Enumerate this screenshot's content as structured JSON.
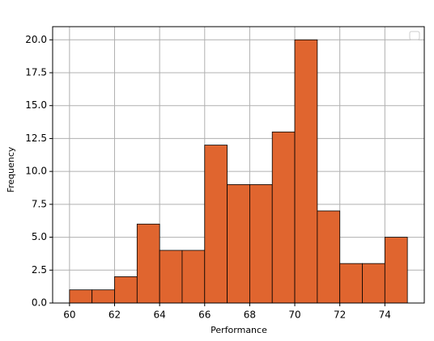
{
  "chart_data": {
    "type": "histogram",
    "x_label": "Performance",
    "y_label": "Frequency",
    "bins": [
      60,
      61,
      62,
      63,
      64,
      65,
      66,
      67,
      68,
      69,
      70,
      71,
      72,
      73,
      74,
      75
    ],
    "values": [
      1,
      1,
      2,
      6,
      4,
      4,
      12,
      9,
      9,
      13,
      20,
      7,
      3,
      3,
      5
    ],
    "color": "#e0652f",
    "edge_color": "#000000",
    "xlim": [
      59.25,
      75.75
    ],
    "ylim": [
      0,
      21
    ],
    "xticks": [
      60,
      62,
      64,
      66,
      68,
      70,
      72,
      74
    ],
    "yticks": [
      {
        "value": 0,
        "label": "0.0"
      },
      {
        "value": 2.5,
        "label": "2.5"
      },
      {
        "value": 5,
        "label": "5.0"
      },
      {
        "value": 7.5,
        "label": "7.5"
      },
      {
        "value": 10,
        "label": "10.0"
      },
      {
        "value": 12.5,
        "label": "12.5"
      },
      {
        "value": 15,
        "label": "15.0"
      },
      {
        "value": 17.5,
        "label": "17.5"
      },
      {
        "value": 20,
        "label": "20.0"
      }
    ],
    "grid": true
  }
}
